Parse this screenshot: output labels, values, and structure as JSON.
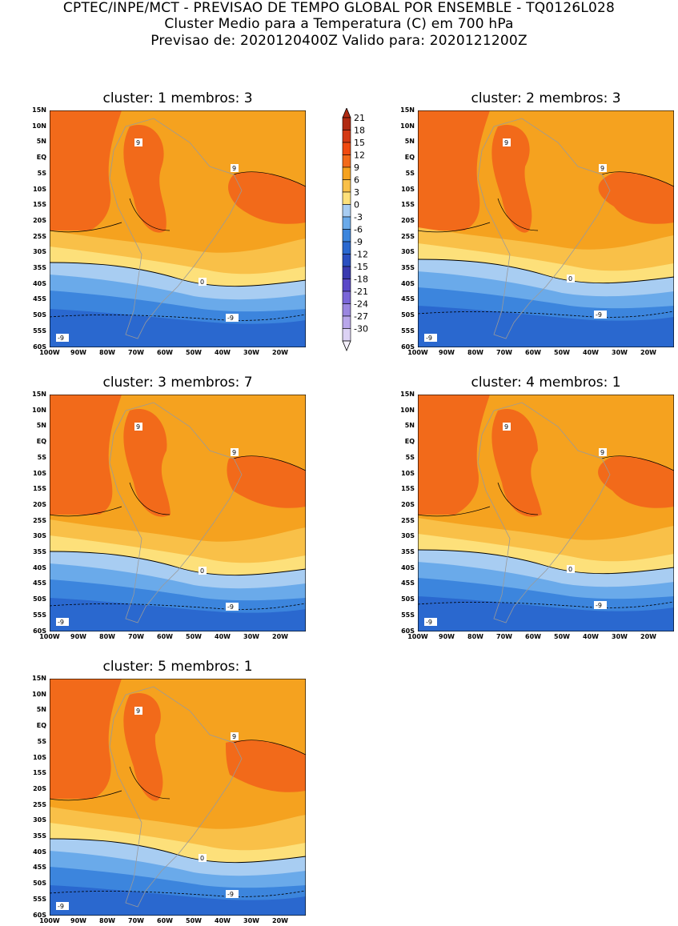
{
  "header": {
    "line1": "CPTEC/INPE/MCT - PREVISAO DE TEMPO GLOBAL POR ENSEMBLE - TQ0126L028",
    "line2": "Cluster Medio para a Temperatura (C) em 700 hPa",
    "line3": "Previsao de: 2020120400Z   Valido para: 2020121200Z"
  },
  "panels": [
    {
      "title": "cluster: 1   membros: 3"
    },
    {
      "title": "cluster: 2   membros: 3"
    },
    {
      "title": "cluster: 3   membros: 7"
    },
    {
      "title": "cluster: 4   membros: 1"
    },
    {
      "title": "cluster: 5   membros: 1"
    }
  ],
  "axes": {
    "lat_labels": [
      "15N",
      "10N",
      "5N",
      "EQ",
      "5S",
      "10S",
      "15S",
      "20S",
      "25S",
      "30S",
      "35S",
      "40S",
      "45S",
      "50S",
      "55S",
      "60S"
    ],
    "lon_labels": [
      "100W",
      "90W",
      "80W",
      "70W",
      "60W",
      "50W",
      "40W",
      "30W",
      "20W"
    ]
  },
  "contour_labels": [
    "9",
    "0",
    "-9"
  ],
  "colorbar": {
    "levels": [
      "21",
      "18",
      "15",
      "12",
      "9",
      "6",
      "3",
      "0",
      "-3",
      "-6",
      "-9",
      "-12",
      "-15",
      "-18",
      "-21",
      "-24",
      "-27",
      "-30"
    ],
    "colors": [
      "#b02a12",
      "#d43a14",
      "#f04a10",
      "#f26a1a",
      "#f5a21f",
      "#f9c048",
      "#fde07a",
      "#a8cdf2",
      "#6aaaea",
      "#3c85dd",
      "#2a68cf",
      "#2a4fc0",
      "#3a3ab0",
      "#5a48c8",
      "#7a66d8",
      "#9a86e0",
      "#b8a6ea",
      "#dcd2f4"
    ]
  }
}
